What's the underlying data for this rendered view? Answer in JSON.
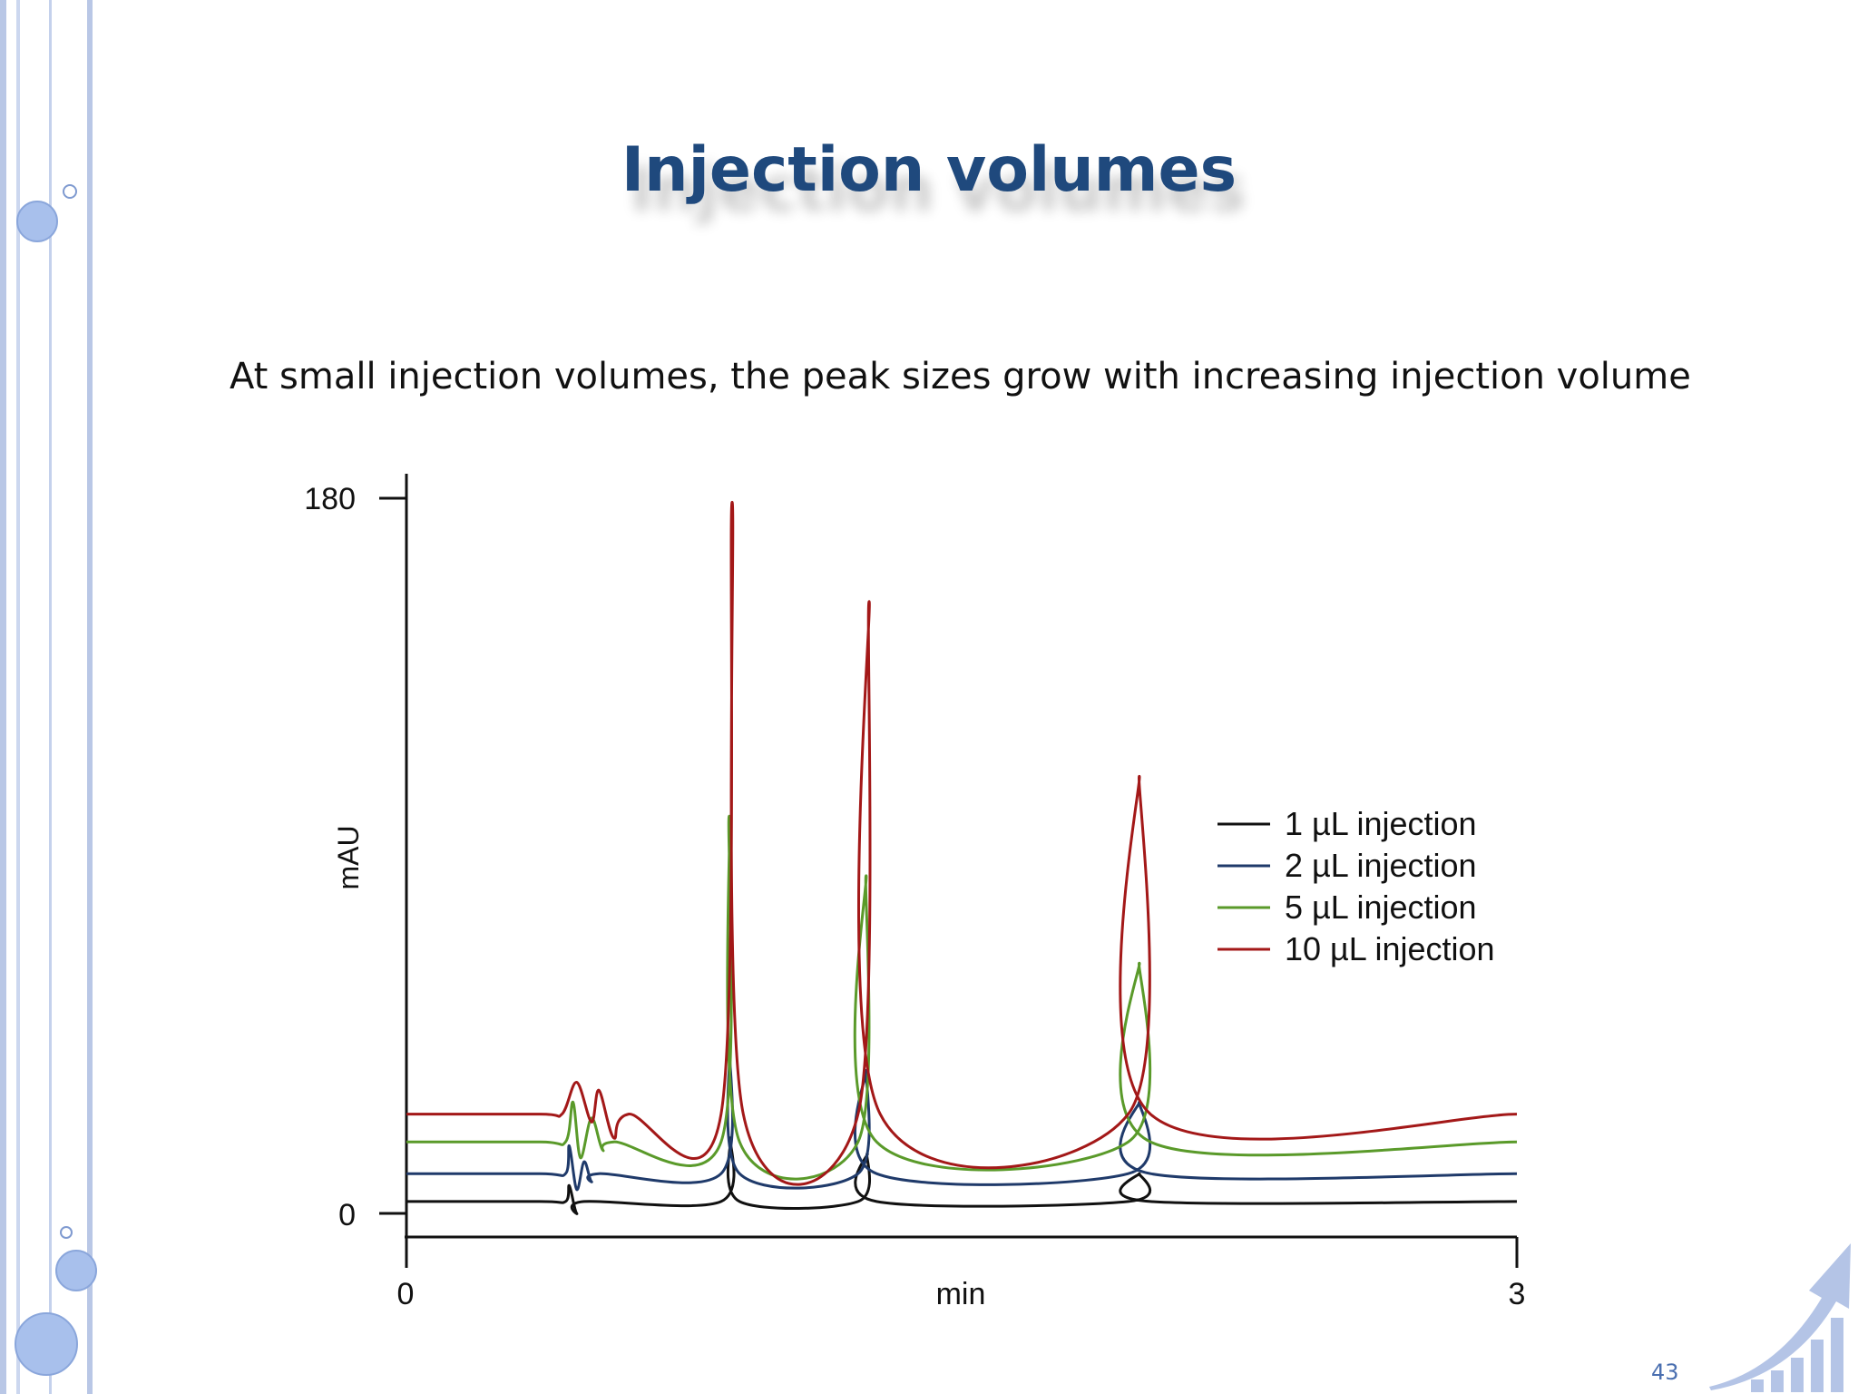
{
  "slide": {
    "title": "Injection volumes",
    "subtitle": "At small injection volumes, the peak sizes grow with increasing injection volume",
    "page_number": "43",
    "colors": {
      "title": "#1f497d",
      "rail": "#b8c8e8",
      "bubble": "#a8c0ec"
    },
    "icons": [
      "growth-chart-arrow-icon"
    ]
  },
  "chart_data": {
    "type": "line",
    "title": "",
    "xlabel": "min",
    "ylabel": "mAU",
    "xlim": [
      0,
      3
    ],
    "ylim": [
      0,
      180
    ],
    "x_ticks": [
      "0",
      "3"
    ],
    "y_ticks": [
      "180",
      "0"
    ],
    "grid": false,
    "legend_position": "right",
    "series": [
      {
        "name": "1 µL injection",
        "color": "#111111",
        "baseline": 3,
        "points": [
          [
            0.0,
            3
          ],
          [
            0.36,
            3
          ],
          [
            0.43,
            3
          ],
          [
            0.44,
            7
          ],
          [
            0.46,
            0
          ],
          [
            0.48,
            3
          ],
          [
            0.85,
            3
          ],
          [
            0.875,
            19
          ],
          [
            0.9,
            3
          ],
          [
            1.22,
            3
          ],
          [
            1.245,
            15
          ],
          [
            1.27,
            3
          ],
          [
            1.95,
            3
          ],
          [
            1.98,
            10
          ],
          [
            2.01,
            3
          ],
          [
            3.0,
            3
          ]
        ]
      },
      {
        "name": "2 µL injection",
        "color": "#1f3a6a",
        "baseline": 10,
        "points": [
          [
            0.0,
            10
          ],
          [
            0.36,
            10
          ],
          [
            0.43,
            10
          ],
          [
            0.44,
            17
          ],
          [
            0.46,
            6
          ],
          [
            0.48,
            13
          ],
          [
            0.5,
            8
          ],
          [
            0.52,
            10
          ],
          [
            0.85,
            10
          ],
          [
            0.873,
            42
          ],
          [
            0.9,
            10
          ],
          [
            1.22,
            10
          ],
          [
            1.243,
            36
          ],
          [
            1.27,
            10
          ],
          [
            1.95,
            10
          ],
          [
            1.98,
            28
          ],
          [
            2.01,
            10
          ],
          [
            3.0,
            10
          ]
        ]
      },
      {
        "name": "5 µL injection",
        "color": "#5a9a2a",
        "baseline": 18,
        "points": [
          [
            0.0,
            18
          ],
          [
            0.36,
            18
          ],
          [
            0.43,
            18
          ],
          [
            0.45,
            28
          ],
          [
            0.47,
            14
          ],
          [
            0.5,
            24
          ],
          [
            0.53,
            16
          ],
          [
            0.56,
            18
          ],
          [
            0.85,
            18
          ],
          [
            0.872,
            100
          ],
          [
            0.9,
            18
          ],
          [
            1.22,
            18
          ],
          [
            1.242,
            85
          ],
          [
            1.27,
            18
          ],
          [
            1.95,
            18
          ],
          [
            1.98,
            63
          ],
          [
            2.01,
            18
          ],
          [
            3.0,
            18
          ]
        ]
      },
      {
        "name": "10 µL injection",
        "color": "#a31818",
        "baseline": 25,
        "points": [
          [
            0.0,
            25
          ],
          [
            0.36,
            25
          ],
          [
            0.42,
            25
          ],
          [
            0.46,
            33
          ],
          [
            0.5,
            23
          ],
          [
            0.52,
            31
          ],
          [
            0.56,
            19
          ],
          [
            0.6,
            25
          ],
          [
            0.85,
            25
          ],
          [
            0.88,
            179
          ],
          [
            0.91,
            25
          ],
          [
            1.22,
            25
          ],
          [
            1.25,
            154
          ],
          [
            1.28,
            25
          ],
          [
            1.95,
            25
          ],
          [
            1.98,
            110
          ],
          [
            2.01,
            25
          ],
          [
            3.0,
            25
          ]
        ]
      }
    ]
  }
}
